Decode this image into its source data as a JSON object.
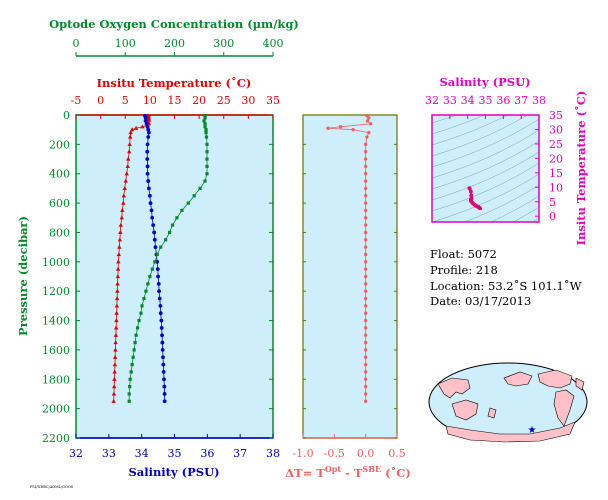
{
  "chart_data": [
    {
      "type": "scatter",
      "axes": {
        "oxygen": {
          "label": "Optode Oxygen Concentration (µm/kg)",
          "range": [
            0,
            400
          ],
          "ticks": [
            "0",
            "100",
            "200",
            "300",
            "400"
          ],
          "color": "#008a2a"
        },
        "temperature": {
          "label": "Insitu Temperature (˚C)",
          "range": [
            -5,
            35
          ],
          "ticks": [
            "-5",
            "0",
            "5",
            "10",
            "15",
            "20",
            "25",
            "30",
            "35"
          ],
          "color": "#e00000"
        },
        "salinity": {
          "label": "Salinity (PSU)",
          "range": [
            32,
            38
          ],
          "ticks": [
            "32",
            "33",
            "34",
            "35",
            "36",
            "37",
            "38"
          ],
          "color": "#0000c0"
        },
        "pressure": {
          "label": "Pressure (decibar)",
          "range": [
            0,
            2200
          ],
          "ticks": [
            "0",
            "200",
            "400",
            "600",
            "800",
            "1000",
            "1200",
            "1400",
            "1600",
            "1800",
            "2000",
            "2200"
          ],
          "color": "#008a2a"
        }
      },
      "grid": false,
      "series": [
        {
          "axis": "temperature",
          "color": "#e00000",
          "marker": "triangle",
          "points": [
            [
              9.6,
              5
            ],
            [
              9.7,
              15
            ],
            [
              9.8,
              25
            ],
            [
              9.8,
              35
            ],
            [
              9.7,
              50
            ],
            [
              9.8,
              60
            ],
            [
              9.5,
              70
            ],
            [
              8.5,
              80
            ],
            [
              7.2,
              90
            ],
            [
              6.4,
              100
            ],
            [
              6.1,
              120
            ],
            [
              6.0,
              150
            ],
            [
              5.9,
              200
            ],
            [
              5.8,
              250
            ],
            [
              5.6,
              300
            ],
            [
              5.5,
              350
            ],
            [
              5.3,
              400
            ],
            [
              5.1,
              450
            ],
            [
              4.9,
              500
            ],
            [
              4.7,
              550
            ],
            [
              4.6,
              600
            ],
            [
              4.4,
              650
            ],
            [
              4.3,
              700
            ],
            [
              4.1,
              750
            ],
            [
              4.0,
              800
            ],
            [
              3.9,
              850
            ],
            [
              3.8,
              900
            ],
            [
              3.7,
              950
            ],
            [
              3.6,
              1000
            ],
            [
              3.55,
              1050
            ],
            [
              3.5,
              1100
            ],
            [
              3.45,
              1150
            ],
            [
              3.4,
              1200
            ],
            [
              3.35,
              1250
            ],
            [
              3.3,
              1300
            ],
            [
              3.25,
              1350
            ],
            [
              3.2,
              1400
            ],
            [
              3.15,
              1450
            ],
            [
              3.1,
              1500
            ],
            [
              3.05,
              1550
            ],
            [
              3.0,
              1600
            ],
            [
              2.95,
              1650
            ],
            [
              2.9,
              1700
            ],
            [
              2.85,
              1750
            ],
            [
              2.8,
              1800
            ],
            [
              2.75,
              1850
            ],
            [
              2.7,
              1900
            ],
            [
              2.65,
              1950
            ]
          ]
        },
        {
          "axis": "salinity",
          "color": "#0000cc",
          "marker": "circle",
          "points": [
            [
              34.1,
              5
            ],
            [
              34.12,
              20
            ],
            [
              34.12,
              40
            ],
            [
              34.15,
              60
            ],
            [
              34.18,
              80
            ],
            [
              34.2,
              100
            ],
            [
              34.22,
              120
            ],
            [
              34.2,
              150
            ],
            [
              34.18,
              200
            ],
            [
              34.17,
              250
            ],
            [
              34.17,
              300
            ],
            [
              34.18,
              350
            ],
            [
              34.18,
              400
            ],
            [
              34.2,
              450
            ],
            [
              34.22,
              500
            ],
            [
              34.25,
              550
            ],
            [
              34.27,
              600
            ],
            [
              34.3,
              650
            ],
            [
              34.32,
              700
            ],
            [
              34.35,
              750
            ],
            [
              34.38,
              800
            ],
            [
              34.4,
              850
            ],
            [
              34.42,
              900
            ],
            [
              34.45,
              950
            ],
            [
              34.47,
              1000
            ],
            [
              34.49,
              1050
            ],
            [
              34.5,
              1100
            ],
            [
              34.52,
              1150
            ],
            [
              34.53,
              1200
            ],
            [
              34.55,
              1250
            ],
            [
              34.57,
              1300
            ],
            [
              34.58,
              1350
            ],
            [
              34.6,
              1400
            ],
            [
              34.61,
              1450
            ],
            [
              34.62,
              1500
            ],
            [
              34.63,
              1550
            ],
            [
              34.64,
              1600
            ],
            [
              34.65,
              1650
            ],
            [
              34.66,
              1700
            ],
            [
              34.67,
              1750
            ],
            [
              34.68,
              1800
            ],
            [
              34.69,
              1850
            ],
            [
              34.7,
              1900
            ],
            [
              34.7,
              1950
            ]
          ]
        },
        {
          "axis": "oxygen",
          "color": "#008a2a",
          "marker": "square",
          "points": [
            [
              262,
              5
            ],
            [
              262,
              20
            ],
            [
              260,
              40
            ],
            [
              262,
              60
            ],
            [
              262,
              80
            ],
            [
              264,
              100
            ],
            [
              264,
              120
            ],
            [
              265,
              150
            ],
            [
              266,
              200
            ],
            [
              266,
              250
            ],
            [
              266,
              300
            ],
            [
              266,
              350
            ],
            [
              266,
              400
            ],
            [
              262,
              450
            ],
            [
              252,
              500
            ],
            [
              240,
              550
            ],
            [
              228,
              600
            ],
            [
              215,
              650
            ],
            [
              205,
              700
            ],
            [
              196,
              750
            ],
            [
              190,
              800
            ],
            [
              182,
              850
            ],
            [
              172,
              900
            ],
            [
              165,
              950
            ],
            [
              160,
              1000
            ],
            [
              155,
              1050
            ],
            [
              150,
              1100
            ],
            [
              146,
              1150
            ],
            [
              142,
              1200
            ],
            [
              138,
              1250
            ],
            [
              134,
              1300
            ],
            [
              132,
              1350
            ],
            [
              128,
              1400
            ],
            [
              125,
              1450
            ],
            [
              122,
              1500
            ],
            [
              120,
              1550
            ],
            [
              118,
              1600
            ],
            [
              116,
              1650
            ],
            [
              114,
              1700
            ],
            [
              112,
              1750
            ],
            [
              110,
              1800
            ],
            [
              109,
              1850
            ],
            [
              108,
              1900
            ],
            [
              108,
              1950
            ]
          ]
        }
      ]
    },
    {
      "type": "scatter",
      "xlabel_main": "ΔT= T",
      "xlabel_sup1": "Opt",
      "xlabel_mid": " - T",
      "xlabel_sup2": "SBE",
      "xlabel_end": " (˚C)",
      "xlim": [
        -1.0,
        0.5
      ],
      "xticks": [
        "-1.0",
        "-0.5",
        "0.0",
        "0.5"
      ],
      "color": "#f06060",
      "points": [
        [
          0.02,
          5
        ],
        [
          0.05,
          20
        ],
        [
          0.03,
          40
        ],
        [
          0.08,
          60
        ],
        [
          -0.4,
          80
        ],
        [
          -0.6,
          90
        ],
        [
          -0.2,
          100
        ],
        [
          0.05,
          120
        ],
        [
          0.02,
          150
        ],
        [
          0.0,
          200
        ],
        [
          0.0,
          250
        ],
        [
          0.0,
          300
        ],
        [
          0.0,
          350
        ],
        [
          0.0,
          400
        ],
        [
          0.0,
          450
        ],
        [
          0.0,
          500
        ],
        [
          0.0,
          550
        ],
        [
          0.0,
          600
        ],
        [
          0.0,
          650
        ],
        [
          0.0,
          700
        ],
        [
          0.0,
          750
        ],
        [
          0.0,
          800
        ],
        [
          0.0,
          850
        ],
        [
          0.0,
          900
        ],
        [
          0.0,
          950
        ],
        [
          0.0,
          1000
        ],
        [
          0.0,
          1050
        ],
        [
          0.0,
          1100
        ],
        [
          0.0,
          1150
        ],
        [
          0.0,
          1200
        ],
        [
          0.0,
          1250
        ],
        [
          0.0,
          1300
        ],
        [
          0.0,
          1350
        ],
        [
          0.0,
          1400
        ],
        [
          0.0,
          1450
        ],
        [
          0.0,
          1500
        ],
        [
          0.0,
          1550
        ],
        [
          0.0,
          1600
        ],
        [
          0.0,
          1650
        ],
        [
          0.0,
          1700
        ],
        [
          0.0,
          1750
        ],
        [
          0.0,
          1800
        ],
        [
          0.0,
          1850
        ],
        [
          0.0,
          1900
        ],
        [
          0.0,
          1950
        ]
      ]
    },
    {
      "type": "scatter",
      "xlabel": "Salinity (PSU)",
      "ylabel": "Insitu Temperature (˚C)",
      "xlim": [
        32,
        38
      ],
      "ylim": [
        -2,
        35
      ],
      "xticks": [
        "32",
        "33",
        "34",
        "35",
        "36",
        "37",
        "38"
      ],
      "yticks": [
        "0",
        "5",
        "10",
        "15",
        "20",
        "25",
        "30",
        "35"
      ],
      "color": "#e0007a",
      "points": [
        [
          34.1,
          9.7
        ],
        [
          34.12,
          9.5
        ],
        [
          34.18,
          8.5
        ],
        [
          34.2,
          7.2
        ],
        [
          34.22,
          6.1
        ],
        [
          34.18,
          5.9
        ],
        [
          34.18,
          5.3
        ],
        [
          34.22,
          4.9
        ],
        [
          34.27,
          4.6
        ],
        [
          34.32,
          4.3
        ],
        [
          34.38,
          4.0
        ],
        [
          34.42,
          3.8
        ],
        [
          34.47,
          3.6
        ],
        [
          34.5,
          3.5
        ],
        [
          34.53,
          3.4
        ],
        [
          34.57,
          3.3
        ],
        [
          34.6,
          3.2
        ],
        [
          34.62,
          3.1
        ],
        [
          34.64,
          3.0
        ],
        [
          34.66,
          2.9
        ],
        [
          34.68,
          2.8
        ],
        [
          34.7,
          2.7
        ]
      ]
    }
  ],
  "info": {
    "float": "Float:  5072",
    "profile": "Profile:  218",
    "location": "Location:  53.2˚S  101.1˚W",
    "date": "Date:  03/17/2013"
  },
  "map": {
    "marker_lat": -53.2,
    "marker_lon": -101.1,
    "marker_color": "#0000cc",
    "land_color": "#ffc0c8",
    "ocean_color": "#cdeefa"
  },
  "footer": "FSI/NDBC/AOML/GOOS"
}
